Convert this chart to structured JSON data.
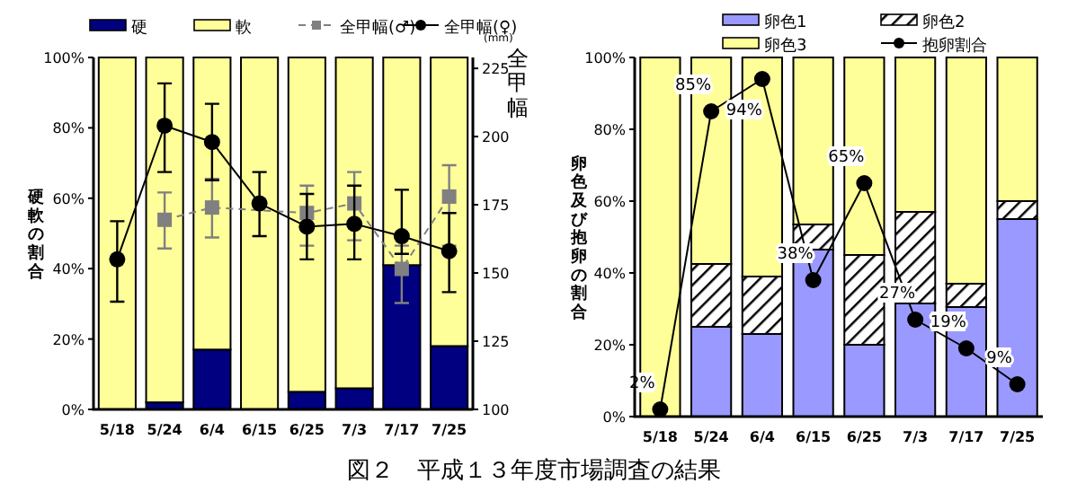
{
  "chart_data": [
    {
      "type": "bar",
      "stacked": true,
      "ylabel": "硬軟の割合",
      "y2label": "全甲幅",
      "annotations": [
        "(mm)"
      ],
      "legend": "top",
      "categories": [
        "5/18",
        "5/24",
        "6/4",
        "6/15",
        "6/25",
        "7/3",
        "7/17",
        "7/25"
      ],
      "ylim": [
        0,
        100
      ],
      "yticks": [
        {
          "value": 0,
          "label": "0%"
        },
        {
          "value": 20,
          "label": "20%"
        },
        {
          "value": 40,
          "label": "40%"
        },
        {
          "value": 60,
          "label": "60%"
        },
        {
          "value": 80,
          "label": "80%"
        },
        {
          "value": 100,
          "label": "100%"
        }
      ],
      "y2lim": [
        100,
        229
      ],
      "y2ticks": [
        100,
        125,
        150,
        175,
        200,
        225
      ],
      "series": [
        {
          "name": "硬",
          "color": "#000080",
          "values": [
            0,
            2,
            17,
            0,
            5,
            6,
            41,
            18
          ]
        },
        {
          "name": "軟",
          "color": "#ffff99",
          "values": [
            100,
            98,
            83,
            100,
            95,
            94,
            59,
            82
          ]
        },
        {
          "name": "全甲幅(♂)",
          "type": "line",
          "axis": "y2",
          "color": "#808080",
          "marker": "square",
          "line_style": "dashed",
          "values": [
            null,
            169.5,
            174,
            null,
            172,
            175.5,
            151.5,
            178
          ],
          "errors": [
            null,
            [
              159,
              179.5
            ],
            [
              163,
              184.5
            ],
            null,
            [
              160,
              182
            ],
            [
              162,
              187
            ],
            [
              139,
              160
            ],
            [
              160,
              189.5
            ]
          ]
        },
        {
          "name": "全甲幅(♀)",
          "type": "line",
          "axis": "y2",
          "color": "#000000",
          "marker": "circle",
          "line_style": "solid",
          "values": [
            155,
            204,
            198,
            175.5,
            167,
            168,
            163.5,
            158
          ],
          "errors": [
            [
              139.5,
              169
            ],
            [
              187,
              219.5
            ],
            [
              184,
              212
            ],
            [
              163.5,
              187
            ],
            [
              155,
              179
            ],
            [
              155,
              182
            ],
            [
              157,
              180.5
            ],
            [
              143,
              172
            ]
          ]
        }
      ]
    },
    {
      "type": "bar",
      "stacked": true,
      "ylabel": "卵色及び抱卵の割合",
      "legend": "top",
      "annotations": [
        "図２　平成１３年度市場調査の結果"
      ],
      "categories": [
        "5/18",
        "5/24",
        "6/4",
        "6/15",
        "6/25",
        "7/3",
        "7/17",
        "7/25"
      ],
      "ylim": [
        0,
        100
      ],
      "yticks": [
        {
          "value": 0,
          "label": "0%"
        },
        {
          "value": 20,
          "label": "20%"
        },
        {
          "value": 40,
          "label": "40%"
        },
        {
          "value": 60,
          "label": "60%"
        },
        {
          "value": 80,
          "label": "80%"
        },
        {
          "value": 100,
          "label": "100%"
        }
      ],
      "series": [
        {
          "name": "卵色1",
          "color": "#9999ff",
          "values": [
            0,
            25,
            23,
            46.5,
            20,
            31.5,
            30.5,
            55
          ]
        },
        {
          "name": "卵色2",
          "color": "#000000",
          "values": [
            0,
            17.5,
            16,
            7,
            25,
            25.5,
            6.5,
            5
          ]
        },
        {
          "name": "卵色3",
          "color": "#ffff99",
          "values": [
            100,
            57.5,
            61,
            46.5,
            55,
            43,
            63,
            40
          ]
        },
        {
          "name": "抱卵割合",
          "type": "line",
          "color": "#000000",
          "marker": "circle",
          "line_style": "solid",
          "values": [
            2,
            85,
            94,
            38,
            65,
            27,
            19,
            9
          ],
          "value_labels": [
            "2%",
            "85%",
            "94%",
            "38%",
            "65%",
            "27%",
            "19%",
            "9%"
          ]
        }
      ]
    }
  ]
}
